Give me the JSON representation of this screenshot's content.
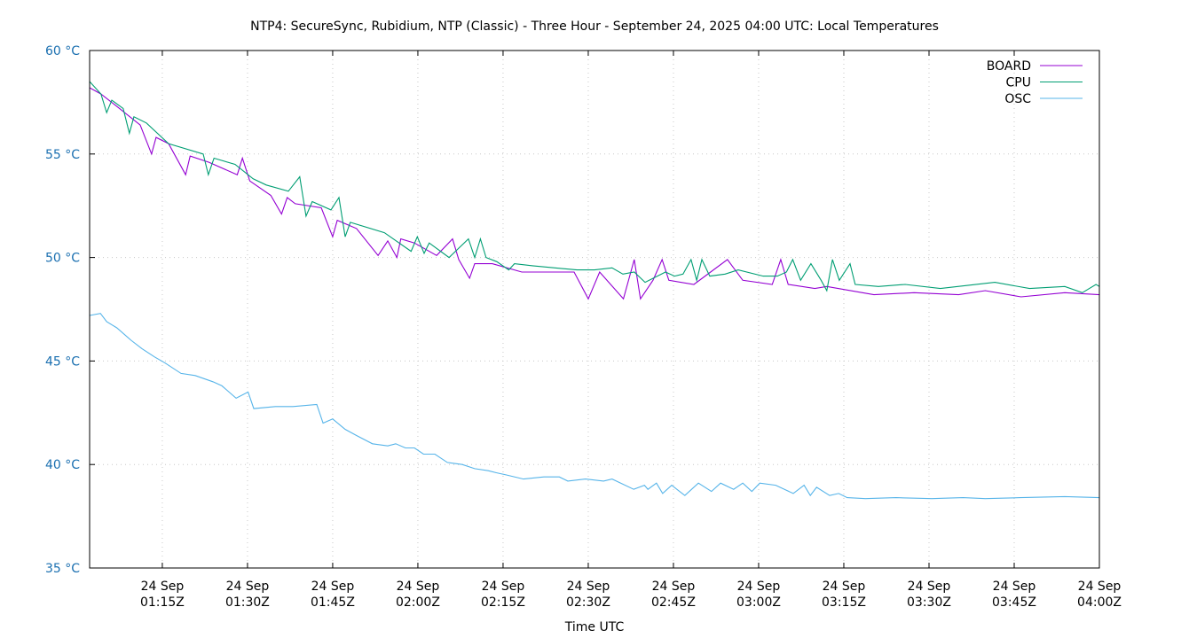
{
  "chart_data": {
    "type": "line",
    "title": "NTP4: SecureSync, Rubidium, NTP (Classic) - Three Hour - September 24, 2025 04:00 UTC: Local Temperatures",
    "xlabel": "Time UTC",
    "ylabel": "",
    "ylim": [
      35,
      60
    ],
    "yticks": [
      "35 °C",
      "40 °C",
      "45 °C",
      "50 °C",
      "55 °C",
      "60 °C"
    ],
    "ytick_values": [
      35,
      40,
      45,
      50,
      55,
      60
    ],
    "x_start": "24 Sep 01:02Z",
    "x_end": "24 Sep 04:00Z",
    "xtick_labels": [
      [
        "24 Sep",
        "01:15Z"
      ],
      [
        "24 Sep",
        "01:30Z"
      ],
      [
        "24 Sep",
        "01:45Z"
      ],
      [
        "24 Sep",
        "02:00Z"
      ],
      [
        "24 Sep",
        "02:15Z"
      ],
      [
        "24 Sep",
        "02:30Z"
      ],
      [
        "24 Sep",
        "02:45Z"
      ],
      [
        "24 Sep",
        "03:00Z"
      ],
      [
        "24 Sep",
        "03:15Z"
      ],
      [
        "24 Sep",
        "03:30Z"
      ],
      [
        "24 Sep",
        "03:45Z"
      ],
      [
        "24 Sep",
        "04:00Z"
      ]
    ],
    "xtick_minutes_from_start": [
      12.8,
      27.8,
      42.8,
      57.8,
      72.8,
      87.8,
      102.8,
      117.8,
      132.8,
      147.8,
      162.8,
      177.8
    ],
    "x_units": "minutes since chart start (approx 01:02Z)",
    "grid": true,
    "legend_position": "top-right",
    "series": [
      {
        "name": "BOARD",
        "color": "#9400d3",
        "points": [
          [
            0,
            58.2
          ],
          [
            2,
            57.9
          ],
          [
            4.8,
            57.3
          ],
          [
            8.9,
            56.4
          ],
          [
            10.9,
            55.0
          ],
          [
            11.7,
            55.8
          ],
          [
            13.9,
            55.5
          ],
          [
            16.9,
            54.0
          ],
          [
            17.7,
            54.9
          ],
          [
            21,
            54.6
          ],
          [
            26,
            54.0
          ],
          [
            26.9,
            54.8
          ],
          [
            28.2,
            53.7
          ],
          [
            31.9,
            53.0
          ],
          [
            33.8,
            52.1
          ],
          [
            34.8,
            52.9
          ],
          [
            36.2,
            52.6
          ],
          [
            40.8,
            52.4
          ],
          [
            42.8,
            51.0
          ],
          [
            43.6,
            51.8
          ],
          [
            47,
            51.4
          ],
          [
            50.8,
            50.1
          ],
          [
            52.5,
            50.8
          ],
          [
            54.1,
            50.0
          ],
          [
            54.8,
            50.9
          ],
          [
            57.2,
            50.7
          ],
          [
            61.1,
            50.1
          ],
          [
            63.9,
            50.9
          ],
          [
            65,
            49.9
          ],
          [
            66.9,
            49.0
          ],
          [
            67.8,
            49.7
          ],
          [
            70.9,
            49.7
          ],
          [
            76.1,
            49.3
          ],
          [
            85.3,
            49.3
          ],
          [
            87.8,
            48.0
          ],
          [
            89.8,
            49.3
          ],
          [
            94,
            48.0
          ],
          [
            95.9,
            49.9
          ],
          [
            97,
            48.0
          ],
          [
            99.2,
            48.9
          ],
          [
            100.8,
            49.9
          ],
          [
            102,
            48.9
          ],
          [
            106.4,
            48.7
          ],
          [
            112.3,
            49.9
          ],
          [
            115,
            48.9
          ],
          [
            120.2,
            48.7
          ],
          [
            121.7,
            49.9
          ],
          [
            123,
            48.7
          ],
          [
            127.7,
            48.5
          ],
          [
            129.8,
            48.6
          ],
          [
            138.1,
            48.2
          ],
          [
            145.2,
            48.3
          ],
          [
            153,
            48.2
          ],
          [
            157.7,
            48.4
          ],
          [
            164,
            48.1
          ],
          [
            171.7,
            48.3
          ],
          [
            177.8,
            48.2
          ]
        ]
      },
      {
        "name": "CPU",
        "color": "#009e73",
        "points": [
          [
            0,
            58.5
          ],
          [
            2,
            57.9
          ],
          [
            3,
            57.0
          ],
          [
            3.9,
            57.6
          ],
          [
            5.9,
            57.2
          ],
          [
            7,
            56.0
          ],
          [
            7.8,
            56.8
          ],
          [
            10,
            56.5
          ],
          [
            13.9,
            55.5
          ],
          [
            20,
            55.0
          ],
          [
            20.9,
            54.0
          ],
          [
            21.9,
            54.8
          ],
          [
            25.6,
            54.5
          ],
          [
            28.8,
            53.8
          ],
          [
            31.1,
            53.5
          ],
          [
            35,
            53.2
          ],
          [
            37,
            53.9
          ],
          [
            38.1,
            52.0
          ],
          [
            39.2,
            52.7
          ],
          [
            42.5,
            52.3
          ],
          [
            43.9,
            52.9
          ],
          [
            45,
            51.0
          ],
          [
            45.9,
            51.7
          ],
          [
            51.9,
            51.2
          ],
          [
            56.6,
            50.3
          ],
          [
            57.7,
            51.0
          ],
          [
            58.9,
            50.2
          ],
          [
            59.8,
            50.7
          ],
          [
            63.3,
            50.0
          ],
          [
            66.7,
            50.9
          ],
          [
            67.8,
            50.0
          ],
          [
            68.8,
            50.9
          ],
          [
            69.8,
            50.0
          ],
          [
            71.7,
            49.8
          ],
          [
            73.8,
            49.4
          ],
          [
            74.8,
            49.7
          ],
          [
            78,
            49.6
          ],
          [
            85.8,
            49.4
          ],
          [
            88.9,
            49.4
          ],
          [
            92,
            49.5
          ],
          [
            93.9,
            49.2
          ],
          [
            95.9,
            49.3
          ],
          [
            97.8,
            48.8
          ],
          [
            101.4,
            49.3
          ],
          [
            103,
            49.1
          ],
          [
            104.5,
            49.2
          ],
          [
            105.9,
            49.9
          ],
          [
            106.9,
            48.9
          ],
          [
            107.8,
            49.9
          ],
          [
            109.2,
            49.1
          ],
          [
            111.9,
            49.2
          ],
          [
            114.2,
            49.4
          ],
          [
            118.6,
            49.1
          ],
          [
            121.1,
            49.1
          ],
          [
            122.7,
            49.3
          ],
          [
            123.8,
            49.9
          ],
          [
            125.2,
            48.9
          ],
          [
            127,
            49.7
          ],
          [
            128.8,
            48.9
          ],
          [
            129.8,
            48.4
          ],
          [
            130.8,
            49.9
          ],
          [
            132,
            48.9
          ],
          [
            133.9,
            49.7
          ],
          [
            134.8,
            48.7
          ],
          [
            138.9,
            48.6
          ],
          [
            143.6,
            48.7
          ],
          [
            149.8,
            48.5
          ],
          [
            159.4,
            48.8
          ],
          [
            165.5,
            48.5
          ],
          [
            171.7,
            48.6
          ],
          [
            174.8,
            48.3
          ],
          [
            177.2,
            48.7
          ],
          [
            177.8,
            48.6
          ]
        ]
      },
      {
        "name": "OSC",
        "color": "#56b4e9",
        "points": [
          [
            0,
            47.2
          ],
          [
            1.9,
            47.3
          ],
          [
            3,
            46.9
          ],
          [
            4.8,
            46.6
          ],
          [
            7.3,
            46.0
          ],
          [
            9.2,
            45.6
          ],
          [
            11.4,
            45.2
          ],
          [
            13.3,
            44.9
          ],
          [
            16.1,
            44.4
          ],
          [
            18.6,
            44.3
          ],
          [
            21.7,
            44.0
          ],
          [
            23.3,
            43.8
          ],
          [
            25.8,
            43.2
          ],
          [
            27.9,
            43.5
          ],
          [
            28.9,
            42.7
          ],
          [
            32.7,
            42.8
          ],
          [
            35.8,
            42.8
          ],
          [
            40,
            42.9
          ],
          [
            41.1,
            42.0
          ],
          [
            42.8,
            42.2
          ],
          [
            45,
            41.7
          ],
          [
            47,
            41.4
          ],
          [
            49.8,
            41.0
          ],
          [
            52.5,
            40.9
          ],
          [
            53.9,
            41.0
          ],
          [
            55.6,
            40.8
          ],
          [
            57.2,
            40.8
          ],
          [
            58.8,
            40.5
          ],
          [
            60.8,
            40.5
          ],
          [
            63,
            40.1
          ],
          [
            65.6,
            40.0
          ],
          [
            67.8,
            39.8
          ],
          [
            70.2,
            39.7
          ],
          [
            71.6,
            39.6
          ],
          [
            73.3,
            39.5
          ],
          [
            76.4,
            39.3
          ],
          [
            80,
            39.4
          ],
          [
            82.7,
            39.4
          ],
          [
            84.2,
            39.2
          ],
          [
            87.3,
            39.3
          ],
          [
            90.5,
            39.2
          ],
          [
            92,
            39.3
          ],
          [
            95.8,
            38.8
          ],
          [
            97.7,
            39.0
          ],
          [
            98.3,
            38.8
          ],
          [
            99.8,
            39.1
          ],
          [
            100.9,
            38.6
          ],
          [
            102.5,
            39.0
          ],
          [
            104.8,
            38.5
          ],
          [
            107.2,
            39.1
          ],
          [
            109.5,
            38.7
          ],
          [
            111.1,
            39.1
          ],
          [
            113.4,
            38.8
          ],
          [
            115,
            39.1
          ],
          [
            116.6,
            38.7
          ],
          [
            118,
            39.1
          ],
          [
            120.8,
            39.0
          ],
          [
            123.9,
            38.6
          ],
          [
            125.8,
            39.0
          ],
          [
            126.9,
            38.5
          ],
          [
            128,
            38.9
          ],
          [
            130.3,
            38.5
          ],
          [
            131.9,
            38.6
          ],
          [
            133.4,
            38.4
          ],
          [
            136.6,
            38.35
          ],
          [
            142,
            38.4
          ],
          [
            148.3,
            38.35
          ],
          [
            153.8,
            38.4
          ],
          [
            157.7,
            38.35
          ],
          [
            163.9,
            38.4
          ],
          [
            171.7,
            38.45
          ],
          [
            177.8,
            38.4
          ]
        ]
      }
    ]
  }
}
